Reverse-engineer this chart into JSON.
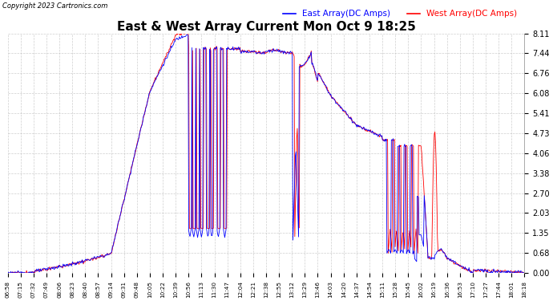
{
  "title": "East & West Array Current Mon Oct 9 18:25",
  "copyright": "Copyright 2023 Cartronics.com",
  "legend_east": "East Array(DC Amps)",
  "legend_west": "West Array(DC Amps)",
  "east_color": "blue",
  "west_color": "red",
  "background_color": "#ffffff",
  "grid_color": "#bbbbbb",
  "yticks": [
    0.0,
    0.68,
    1.35,
    2.03,
    2.7,
    3.38,
    4.06,
    4.73,
    5.41,
    6.08,
    6.76,
    7.44,
    8.11
  ],
  "ymin": 0.0,
  "ymax": 8.11,
  "x_labels": [
    "06:58",
    "07:15",
    "07:32",
    "07:49",
    "08:06",
    "08:23",
    "08:40",
    "08:57",
    "09:14",
    "09:31",
    "09:48",
    "10:05",
    "10:22",
    "10:39",
    "10:56",
    "11:13",
    "11:30",
    "11:47",
    "12:04",
    "12:21",
    "12:38",
    "12:55",
    "13:12",
    "13:29",
    "13:46",
    "14:03",
    "14:20",
    "14:37",
    "14:54",
    "15:11",
    "15:28",
    "15:45",
    "16:02",
    "16:19",
    "16:36",
    "16:53",
    "17:10",
    "17:27",
    "17:44",
    "18:01",
    "18:18"
  ]
}
